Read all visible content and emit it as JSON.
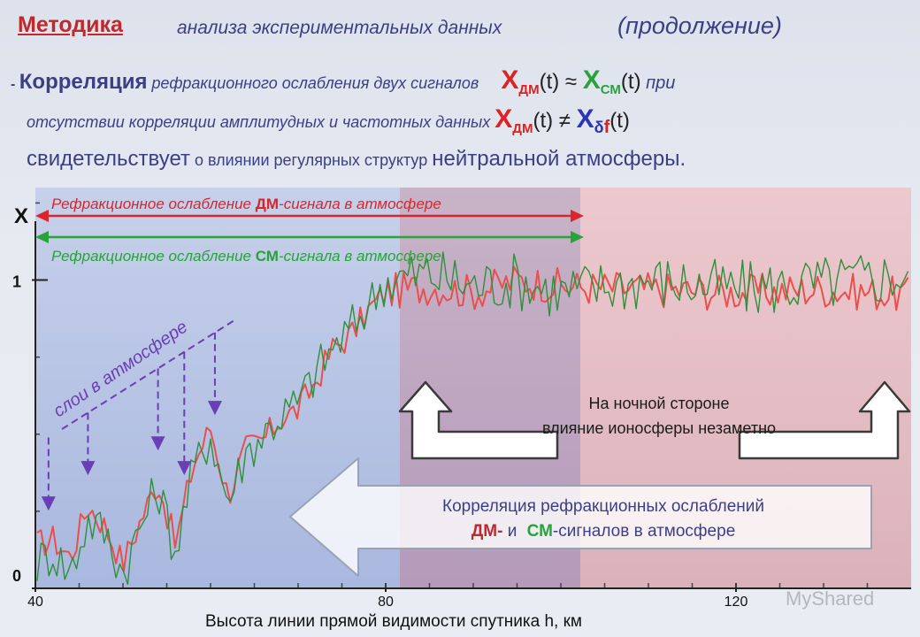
{
  "header": {
    "title_bold": "Методика ",
    "title_rest": "анализа экспериментальных данных",
    "title_paren": "(продолжение)"
  },
  "statement": {
    "dash": "- ",
    "word1": "Корреляция",
    "text1": " рефракционного ослабления двух сигналов",
    "x_dm1": "X",
    "sub_dm1": "ДМ",
    "t1": "(t)",
    "approx": " ≈ ",
    "x_sm": "X",
    "sub_sm": "СМ",
    "t2": "(t)",
    "pri": " при",
    "text2": "отсутствии корреляции амплитудных и частотных данных",
    "x_dm2": "X",
    "sub_dm2": "ДМ",
    "t3": "(t)",
    "neq": " ≠ ",
    "x_df": "X",
    "sub_df_delta": "δ",
    "sub_df_f": "f",
    "t4": "(t)",
    "line3_a": "свидетельствует",
    "line3_b": " о влиянии регулярных структур ",
    "line3_c": "нейтральной атмосферы."
  },
  "annotations": {
    "dm_arrow_prefix": "Рефракционное ослабление ",
    "dm_arrow_bold": "ДМ",
    "dm_arrow_suffix": "-сигнала в атмосфере",
    "sm_arrow_prefix": "Рефракционное ослабление ",
    "sm_arrow_bold": "СМ",
    "sm_arrow_suffix": "-сигнала в атмосфере",
    "layers": "слои в атмосфере",
    "night_line1": "На ночной стороне",
    "night_line2": "влияние ионосферы незаметно",
    "corr_line1": "Корреляция рефракционных ослаблений",
    "corr_dm": "ДМ-",
    "corr_and": " и ",
    "corr_sm": "СМ",
    "corr_rest": "-сигналов в атмосфере"
  },
  "colors": {
    "dm": "#e8504d",
    "sm": "#2f8f3a",
    "accent": "#c0282c",
    "text": "#3b3f86",
    "layers": "#6a3fb5"
  },
  "watermark": "MyShared",
  "chart_data": {
    "type": "line",
    "xlabel": "Высота линии прямой видимости спутника h, км",
    "ylabel": "X",
    "xlim": [
      40,
      140
    ],
    "ylim": [
      0,
      1.3
    ],
    "xticks": [
      40,
      80,
      120
    ],
    "xtick_labels": [
      "40",
      "80",
      "120"
    ],
    "yticks": [
      0,
      1
    ],
    "ytick_labels": [
      "0",
      "1"
    ],
    "regions": [
      {
        "name": "atmosphere",
        "x": [
          40,
          80
        ],
        "color": "#b8c4e4"
      },
      {
        "name": "transition",
        "x": [
          80,
          100
        ],
        "color": "#bfa7bd"
      },
      {
        "name": "ionosphere",
        "x": [
          100,
          140
        ],
        "color": "#e3bcc3"
      }
    ],
    "layer_marks_x": [
      41.5,
      46,
      54,
      57,
      60.5
    ],
    "series": [
      {
        "name": "ДМ",
        "color": "#e8504d",
        "amp": 0.05,
        "x": [
          40,
          42,
          44,
          46,
          48,
          50,
          52,
          54,
          56,
          58,
          60,
          62,
          64,
          66,
          68,
          70,
          72,
          74,
          76,
          78,
          80,
          85,
          90,
          95,
          100,
          110,
          120,
          130,
          140
        ],
        "y": [
          0.14,
          0.16,
          0.1,
          0.27,
          0.2,
          0.08,
          0.22,
          0.35,
          0.14,
          0.4,
          0.52,
          0.3,
          0.45,
          0.48,
          0.55,
          0.58,
          0.67,
          0.78,
          0.82,
          0.9,
          0.96,
          0.98,
          0.96,
          1.0,
          0.98,
          0.97,
          0.96,
          0.97,
          0.95
        ]
      },
      {
        "name": "СМ",
        "color": "#2f8f3a",
        "amp": 0.08,
        "x": [
          40,
          42,
          44,
          46,
          48,
          50,
          52,
          54,
          56,
          58,
          60,
          62,
          64,
          66,
          68,
          70,
          72,
          74,
          76,
          78,
          80,
          85,
          90,
          95,
          100,
          110,
          120,
          130,
          140
        ],
        "y": [
          0.08,
          0.12,
          0.05,
          0.22,
          0.18,
          0.05,
          0.2,
          0.33,
          0.12,
          0.38,
          0.5,
          0.28,
          0.44,
          0.5,
          0.56,
          0.6,
          0.7,
          0.78,
          0.84,
          0.92,
          1.0,
          1.02,
          0.98,
          1.0,
          0.96,
          1.0,
          0.97,
          0.99,
          1.02
        ]
      }
    ]
  }
}
